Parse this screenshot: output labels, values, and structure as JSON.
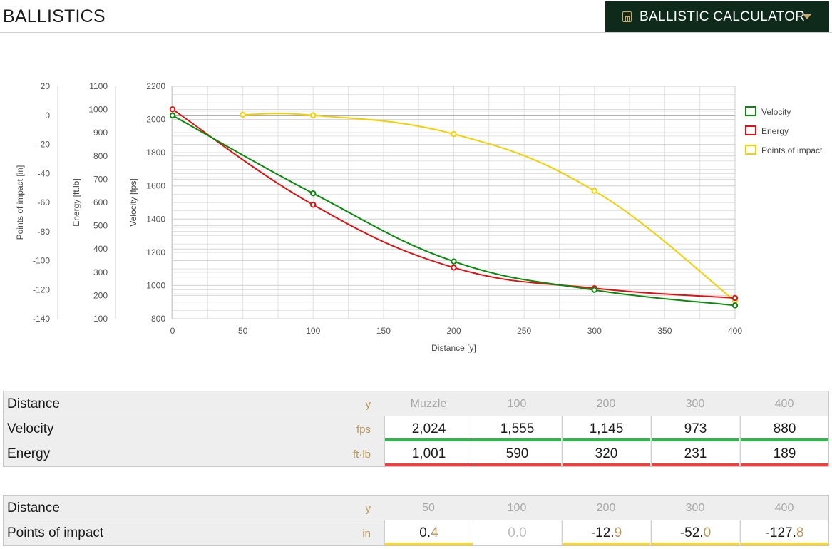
{
  "header": {
    "title": "BALLISTICS",
    "calculator_button": "BALLISTIC CALCULATOR"
  },
  "colors": {
    "velocity": "#0a8a0a",
    "energy": "#e01010",
    "impact": "#f5d000",
    "velocity_bar": "#2db84a",
    "energy_bar": "#e94040",
    "impact_bar": "#f5d53b",
    "header_bg": "#0e2a1a",
    "accent": "#b8975a"
  },
  "chart_data": {
    "type": "line",
    "xlabel": "Distance [y]",
    "x_ticks": [
      0,
      50,
      100,
      150,
      200,
      250,
      300,
      350,
      400
    ],
    "xlim": [
      0,
      400
    ],
    "grid": true,
    "legend_position": "right",
    "axes": [
      {
        "label": "Points of impact [in]",
        "ticks": [
          20,
          0,
          -20,
          -40,
          -60,
          -80,
          -100,
          -120,
          -140
        ],
        "ylim": [
          -140,
          20
        ]
      },
      {
        "label": "Energy [ft.lb]",
        "ticks": [
          1100,
          1000,
          900,
          800,
          700,
          600,
          500,
          400,
          300,
          200,
          100
        ],
        "ylim": [
          100,
          1100
        ]
      },
      {
        "label": "Velocity [fps]",
        "ticks": [
          2200,
          2000,
          1800,
          1600,
          1400,
          1200,
          1000,
          800
        ],
        "ylim": [
          800,
          2200
        ]
      }
    ],
    "series": [
      {
        "name": "Velocity",
        "axis": 2,
        "x": [
          0,
          100,
          200,
          300,
          400
        ],
        "values": [
          2024,
          1555,
          1145,
          973,
          880
        ]
      },
      {
        "name": "Energy",
        "axis": 1,
        "x": [
          0,
          100,
          200,
          300,
          400
        ],
        "values": [
          1001,
          590,
          320,
          231,
          189
        ]
      },
      {
        "name": "Points of impact",
        "axis": 0,
        "x": [
          50,
          100,
          200,
          300,
          400
        ],
        "values": [
          0.4,
          0.0,
          -12.9,
          -52.0,
          -127.8
        ]
      }
    ]
  },
  "table1": {
    "rows": [
      {
        "label": "Distance",
        "unit": "y",
        "cells": [
          {
            "int": "Muzzle",
            "dec": ""
          },
          {
            "int": "100",
            "dec": ""
          },
          {
            "int": "200",
            "dec": ""
          },
          {
            "int": "300",
            "dec": ""
          },
          {
            "int": "400",
            "dec": ""
          }
        ]
      },
      {
        "label": "Velocity",
        "unit": "fps",
        "cells": [
          {
            "int": "2,024",
            "dec": ""
          },
          {
            "int": "1,555",
            "dec": ""
          },
          {
            "int": "1,145",
            "dec": ""
          },
          {
            "int": "973",
            "dec": ""
          },
          {
            "int": "880",
            "dec": ""
          }
        ]
      },
      {
        "label": "Energy",
        "unit": "ft·lb",
        "cells": [
          {
            "int": "1,001",
            "dec": ""
          },
          {
            "int": "590",
            "dec": ""
          },
          {
            "int": "320",
            "dec": ""
          },
          {
            "int": "231",
            "dec": ""
          },
          {
            "int": "189",
            "dec": ""
          }
        ]
      }
    ]
  },
  "table2": {
    "rows": [
      {
        "label": "Distance",
        "unit": "y",
        "cells": [
          {
            "int": "50",
            "dec": ""
          },
          {
            "int": "100",
            "dec": ""
          },
          {
            "int": "200",
            "dec": ""
          },
          {
            "int": "300",
            "dec": ""
          },
          {
            "int": "400",
            "dec": ""
          }
        ]
      },
      {
        "label": "Points of impact",
        "unit": "in",
        "cells": [
          {
            "int": "0.",
            "dec": "4"
          },
          {
            "int": "0.",
            "dec": "0"
          },
          {
            "int": "-12.",
            "dec": "9"
          },
          {
            "int": "-52.",
            "dec": "0"
          },
          {
            "int": "-127.",
            "dec": "8"
          }
        ]
      }
    ]
  }
}
